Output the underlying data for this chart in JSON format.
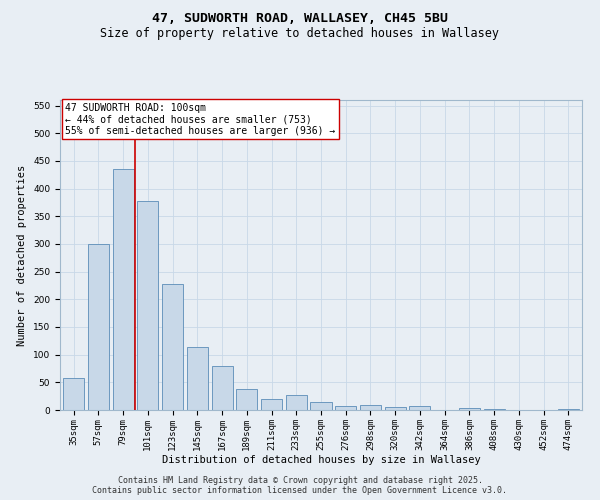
{
  "title": "47, SUDWORTH ROAD, WALLASEY, CH45 5BU",
  "subtitle": "Size of property relative to detached houses in Wallasey",
  "xlabel": "Distribution of detached houses by size in Wallasey",
  "ylabel": "Number of detached properties",
  "categories": [
    "35sqm",
    "57sqm",
    "79sqm",
    "101sqm",
    "123sqm",
    "145sqm",
    "167sqm",
    "189sqm",
    "211sqm",
    "233sqm",
    "255sqm",
    "276sqm",
    "298sqm",
    "320sqm",
    "342sqm",
    "364sqm",
    "386sqm",
    "408sqm",
    "430sqm",
    "452sqm",
    "474sqm"
  ],
  "values": [
    57,
    300,
    435,
    378,
    228,
    113,
    80,
    38,
    19,
    27,
    15,
    7,
    9,
    6,
    8,
    0,
    4,
    2,
    0,
    0,
    2
  ],
  "bar_color": "#c8d8e8",
  "bar_edge_color": "#5b8db8",
  "vline_x": 3.0,
  "vline_color": "#cc0000",
  "annotation_text": "47 SUDWORTH ROAD: 100sqm\n← 44% of detached houses are smaller (753)\n55% of semi-detached houses are larger (936) →",
  "annotation_box_color": "#ffffff",
  "annotation_box_edge_color": "#cc0000",
  "ylim": [
    0,
    560
  ],
  "yticks": [
    0,
    50,
    100,
    150,
    200,
    250,
    300,
    350,
    400,
    450,
    500,
    550
  ],
  "grid_color": "#c8d8e8",
  "background_color": "#e8eef4",
  "footer_line1": "Contains HM Land Registry data © Crown copyright and database right 2025.",
  "footer_line2": "Contains public sector information licensed under the Open Government Licence v3.0.",
  "title_fontsize": 9.5,
  "subtitle_fontsize": 8.5,
  "axis_label_fontsize": 7.5,
  "tick_fontsize": 6.5,
  "annotation_fontsize": 7,
  "footer_fontsize": 6
}
